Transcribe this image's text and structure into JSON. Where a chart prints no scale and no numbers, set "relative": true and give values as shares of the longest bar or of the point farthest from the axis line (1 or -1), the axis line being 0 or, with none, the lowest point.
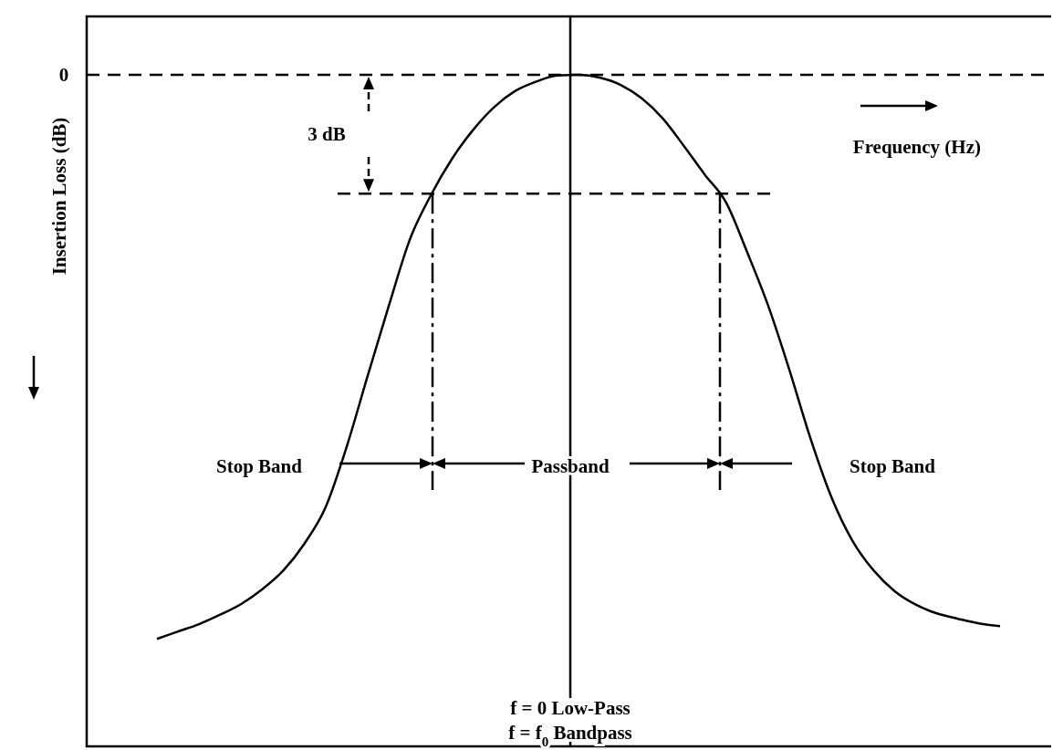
{
  "chart_data": {
    "type": "line",
    "relative": true,
    "ylabel": "Insertion Loss (dB)",
    "color": "#000000",
    "line_style": "solid",
    "marker": "none",
    "categories": [
      null,
      null,
      null,
      null,
      null,
      null,
      null,
      null,
      null,
      null,
      null,
      null,
      null,
      null,
      null,
      null,
      null,
      null,
      null,
      null,
      null,
      null,
      null,
      null,
      null,
      null,
      null,
      null,
      null,
      null,
      null,
      null,
      null,
      null,
      null,
      null,
      null,
      null,
      null,
      null,
      null
    ],
    "values": [
      0.16,
      0.171,
      0.182,
      0.196,
      0.212,
      0.234,
      0.262,
      0.302,
      0.356,
      0.446,
      0.552,
      0.656,
      0.755,
      0.821,
      0.875,
      0.918,
      0.952,
      0.976,
      0.99,
      0.999,
      1,
      0.996,
      0.985,
      0.965,
      0.935,
      0.894,
      0.851,
      0.81,
      0.736,
      0.656,
      0.561,
      0.459,
      0.371,
      0.306,
      0.262,
      0.231,
      0.211,
      0.198,
      0.19,
      0.183,
      0.179
    ],
    "ref_lines": [
      {
        "axis": "y",
        "value": 1,
        "line_style": "dashed"
      },
      {
        "axis": "y",
        "value": 0.823,
        "line_style": "dashed"
      }
    ],
    "annotations": [
      "0",
      "3 dB",
      "Frequency (Hz)",
      "Stop Band",
      "Passband",
      "Stop Band",
      "f = 0 Low-Pass",
      "f = f$_{0}$ Bandpass"
    ]
  }
}
